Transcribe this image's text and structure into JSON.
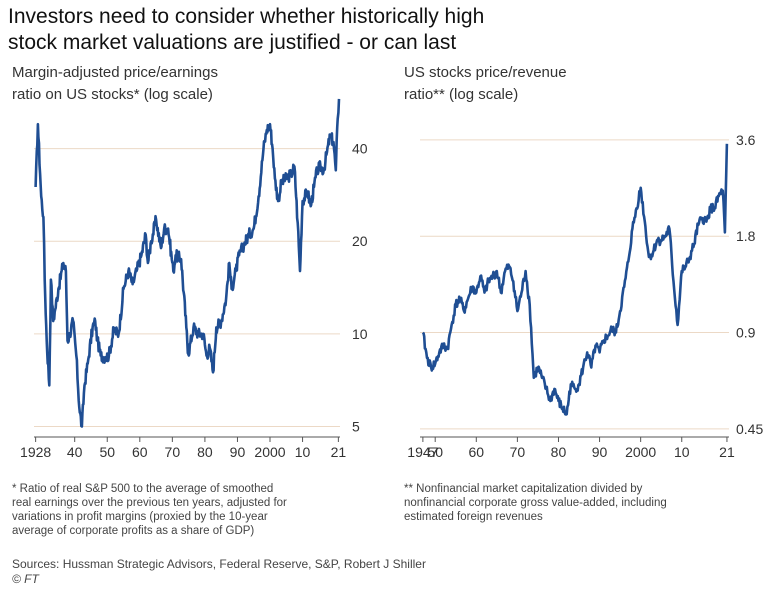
{
  "title_lines": [
    "Investors need to consider whether historically high",
    "stock market valuations are justified - or can last"
  ],
  "chart_data": [
    {
      "type": "line",
      "subtitle_lines": [
        "Margin-adjusted price/earnings",
        "ratio on US stocks* (log scale)"
      ],
      "scale": "log",
      "ylim": [
        4.8,
        62
      ],
      "xlim": [
        1927.5,
        2021.5
      ],
      "y_ticks": [
        {
          "v": 40,
          "label": "40"
        },
        {
          "v": 20,
          "label": "20"
        },
        {
          "v": 10,
          "label": "10"
        },
        {
          "v": 5,
          "label": "5"
        }
      ],
      "x_ticks": [
        {
          "v": 1928,
          "label": "1928"
        },
        {
          "v": 1940,
          "label": "40"
        },
        {
          "v": 1950,
          "label": "50"
        },
        {
          "v": 1960,
          "label": "60"
        },
        {
          "v": 1970,
          "label": "70"
        },
        {
          "v": 1980,
          "label": "80"
        },
        {
          "v": 1990,
          "label": "90"
        },
        {
          "v": 2000,
          "label": "2000"
        },
        {
          "v": 2010,
          "label": "10"
        },
        {
          "v": 2021,
          "label": "21"
        }
      ],
      "grid": "horizontal",
      "line_color": "#1f4e93",
      "x": [
        1928,
        1928.7,
        1929.7,
        1930.4,
        1930.8,
        1931.4,
        1932.2,
        1932.7,
        1933.4,
        1934,
        1935,
        1936.5,
        1937.3,
        1937.8,
        1938.5,
        1939.5,
        1940.5,
        1941.4,
        1942.2,
        1943,
        1944,
        1945.5,
        1946.3,
        1947,
        1948,
        1949.5,
        1950.5,
        1952,
        1953.5,
        1955,
        1956.5,
        1957.8,
        1959,
        1960.5,
        1961.8,
        1962.5,
        1963.5,
        1965,
        1966.5,
        1967.5,
        1968.7,
        1970.3,
        1971,
        1972.7,
        1974.3,
        1974.9,
        1976.5,
        1978,
        1979.5,
        1980.5,
        1981.5,
        1982.5,
        1983.5,
        1985,
        1986.5,
        1987.5,
        1988.2,
        1989.5,
        1990.5,
        1992,
        1993.5,
        1995,
        1996.5,
        1998,
        1999,
        2000,
        2000.8,
        2001.5,
        2002.5,
        2003.5,
        2005,
        2006.5,
        2007.5,
        2008.5,
        2009.2,
        2010,
        2011.5,
        2012.5,
        2013.5,
        2014.5,
        2015.5,
        2016.5,
        2017.5,
        2018.5,
        2019.5,
        2020.2,
        2020.8,
        2021.2
      ],
      "y": [
        30,
        48,
        28,
        24,
        15,
        9.5,
        6.8,
        15,
        11,
        12,
        14,
        17,
        16,
        9.5,
        10,
        11,
        8.5,
        5.8,
        5.0,
        6.8,
        8.0,
        10.5,
        11,
        9.5,
        8.5,
        8.4,
        8.5,
        10.3,
        10.0,
        14,
        16,
        14.5,
        16,
        18,
        21,
        17,
        20,
        23.5,
        19,
        22,
        22,
        16,
        18,
        17.5,
        10.5,
        8.6,
        10.5,
        10.0,
        10,
        8.5,
        9,
        7.5,
        10.5,
        11,
        13,
        17,
        14,
        16,
        18,
        19.5,
        21,
        22,
        28,
        40,
        46,
        48,
        40,
        32,
        27,
        31,
        32,
        33,
        35,
        23,
        16,
        27,
        29,
        26,
        30,
        34,
        35,
        34,
        39,
        44,
        42,
        34,
        50,
        58
      ]
    },
    {
      "type": "line",
      "subtitle_lines": [
        "US stocks price/revenue",
        "ratio** (log scale)"
      ],
      "scale": "log",
      "ylim": [
        0.44,
        4.4
      ],
      "xlim": [
        1946.3,
        2021.5
      ],
      "y_ticks": [
        {
          "v": 3.6,
          "label": "3.6"
        },
        {
          "v": 1.8,
          "label": "1.8"
        },
        {
          "v": 0.9,
          "label": "0.9"
        },
        {
          "v": 0.45,
          "label": "0.45"
        }
      ],
      "x_ticks": [
        {
          "v": 1947,
          "label": "1947"
        },
        {
          "v": 1950,
          "label": "50"
        },
        {
          "v": 1960,
          "label": "60"
        },
        {
          "v": 1970,
          "label": "70"
        },
        {
          "v": 1980,
          "label": "80"
        },
        {
          "v": 1990,
          "label": "90"
        },
        {
          "v": 2000,
          "label": "2000"
        },
        {
          "v": 2010,
          "label": "10"
        },
        {
          "v": 2021,
          "label": "21"
        }
      ],
      "grid": "horizontal",
      "line_color": "#1f4e93",
      "x": [
        1947,
        1948,
        1949,
        1950,
        1951,
        1952,
        1953,
        1954,
        1955,
        1956,
        1957,
        1958,
        1959,
        1960,
        1961,
        1962,
        1963,
        1964,
        1965,
        1966,
        1967,
        1968,
        1969,
        1970,
        1971,
        1972,
        1973,
        1974,
        1975,
        1976,
        1977,
        1978,
        1979,
        1980,
        1981,
        1982,
        1983,
        1984,
        1985,
        1986,
        1987,
        1988,
        1989,
        1990,
        1991,
        1992,
        1993,
        1994,
        1995,
        1996,
        1997,
        1998,
        1999,
        2000,
        2001,
        2002,
        2003,
        2004,
        2005,
        2006,
        2007,
        2008,
        2009,
        2010,
        2011,
        2012,
        2013,
        2014,
        2015,
        2016,
        2017,
        2018,
        2019,
        2020,
        2020.5,
        2021
      ],
      "y": [
        0.9,
        0.75,
        0.7,
        0.72,
        0.78,
        0.82,
        0.8,
        0.95,
        1.1,
        1.15,
        1.05,
        1.15,
        1.25,
        1.2,
        1.35,
        1.2,
        1.3,
        1.35,
        1.4,
        1.2,
        1.4,
        1.45,
        1.3,
        1.05,
        1.2,
        1.4,
        1.1,
        0.65,
        0.7,
        0.65,
        0.6,
        0.55,
        0.6,
        0.55,
        0.52,
        0.5,
        0.62,
        0.6,
        0.62,
        0.7,
        0.78,
        0.7,
        0.82,
        0.78,
        0.85,
        0.88,
        0.92,
        0.9,
        1.05,
        1.25,
        1.5,
        1.9,
        2.2,
        2.55,
        2.0,
        1.55,
        1.6,
        1.75,
        1.75,
        1.8,
        1.9,
        1.3,
        0.95,
        1.4,
        1.45,
        1.55,
        1.7,
        1.95,
        2.05,
        2.0,
        2.2,
        2.2,
        2.4,
        2.5,
        1.85,
        3.5
      ]
    }
  ],
  "notes": {
    "left": [
      "* Ratio of real S&P 500 to the average of smoothed",
      "real earnings over the previous ten years, adjusted for",
      "variations in profit margins (proxied by the 10-year",
      "average of corporate profits as a share of GDP)"
    ],
    "right": [
      "** Nonfinancial market capitalization divided by",
      "nonfinancial corporate gross value-added, including",
      "estimated foreign revenues"
    ]
  },
  "sources": "Sources: Hussman Strategic Advisors, Federal Reserve, S&P, Robert J Shiller",
  "credit": "© FT"
}
